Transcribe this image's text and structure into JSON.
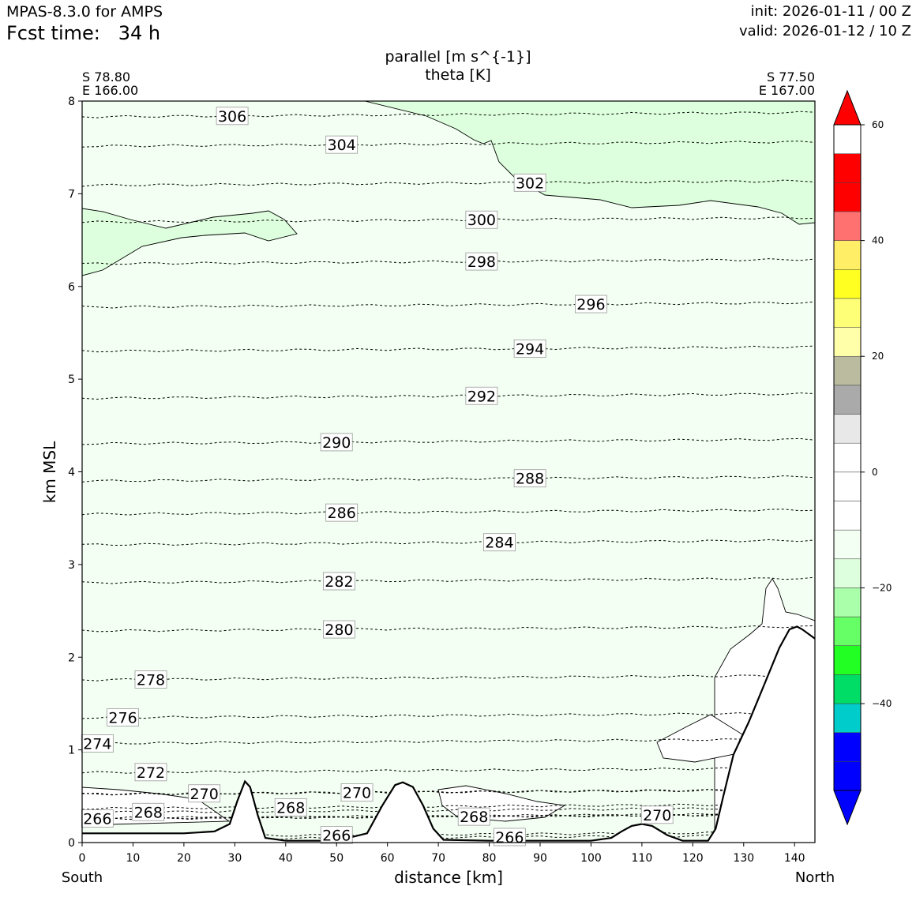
{
  "header": {
    "app_title": "MPAS-8.3.0 for AMPS",
    "fcst_label": "Fcst time:",
    "fcst_value": "34 h",
    "init": "init: 2026-01-11 / 00 Z",
    "valid": "valid: 2026-01-12 / 10 Z"
  },
  "chart_data": {
    "type": "contour",
    "title_line1": "parallel [m s^{-1}]",
    "title_line2": "theta [K]",
    "xlabel": "distance [km]",
    "ylabel": "km MSL",
    "xlim": [
      0,
      144
    ],
    "ylim": [
      0,
      8
    ],
    "xticks": [
      0,
      10,
      20,
      30,
      40,
      50,
      60,
      70,
      80,
      90,
      100,
      110,
      120,
      130,
      140
    ],
    "yticks": [
      0,
      1,
      2,
      3,
      4,
      5,
      6,
      7,
      8
    ],
    "left_end": {
      "direction": "South",
      "lat": "S 78.80",
      "lon": "E 166.00"
    },
    "right_end": {
      "direction": "North",
      "lat": "S 77.50",
      "lon": "E 167.00"
    },
    "theta_contours": [
      {
        "theta": 306,
        "label": "306",
        "x_km": 29.5,
        "z_km": 7.84
      },
      {
        "theta": 304,
        "label": "304",
        "x_km": 51,
        "z_km": 7.53
      },
      {
        "theta": 302,
        "label": "302",
        "x_km": 88,
        "z_km": 7.12
      },
      {
        "theta": 300,
        "label": "300",
        "x_km": 78.5,
        "z_km": 6.72
      },
      {
        "theta": 298,
        "label": "298",
        "x_km": 78.5,
        "z_km": 6.27
      },
      {
        "theta": 296,
        "label": "296",
        "x_km": 100,
        "z_km": 5.81
      },
      {
        "theta": 294,
        "label": "294",
        "x_km": 88,
        "z_km": 5.33
      },
      {
        "theta": 292,
        "label": "292",
        "x_km": 78.5,
        "z_km": 4.82
      },
      {
        "theta": 290,
        "label": "290",
        "x_km": 50,
        "z_km": 4.32
      },
      {
        "theta": 288,
        "label": "288",
        "x_km": 88,
        "z_km": 3.93
      },
      {
        "theta": 286,
        "label": "286",
        "x_km": 51,
        "z_km": 3.56
      },
      {
        "theta": 284,
        "label": "284",
        "x_km": 82,
        "z_km": 3.24
      },
      {
        "theta": 282,
        "label": "282",
        "x_km": 50.5,
        "z_km": 2.82
      },
      {
        "theta": 280,
        "label": "280",
        "x_km": 50.5,
        "z_km": 2.3
      },
      {
        "theta": 278,
        "label": "278",
        "x_km": 13.5,
        "z_km": 1.76
      },
      {
        "theta": 276,
        "label": "276",
        "x_km": 8,
        "z_km": 1.35
      },
      {
        "theta": 274,
        "label": "274",
        "x_km": 3,
        "z_km": 1.07
      },
      {
        "theta": 272,
        "label": "272",
        "x_km": 13.5,
        "z_km": 0.76
      },
      {
        "theta": 270,
        "label": "270",
        "x_km": 24,
        "z_km": 0.53
      },
      {
        "theta": 270,
        "label": "270",
        "x_km": 54,
        "z_km": 0.54
      },
      {
        "theta": 270,
        "label": "270",
        "x_km": 113,
        "z_km": 0.3
      },
      {
        "theta": 268,
        "label": "268",
        "x_km": 13,
        "z_km": 0.33
      },
      {
        "theta": 268,
        "label": "268",
        "x_km": 41,
        "z_km": 0.38
      },
      {
        "theta": 268,
        "label": "268",
        "x_km": 77,
        "z_km": 0.28
      },
      {
        "theta": 266,
        "label": "266",
        "x_km": 3,
        "z_km": 0.26
      },
      {
        "theta": 266,
        "label": "266",
        "x_km": 50,
        "z_km": 0.08
      },
      {
        "theta": 266,
        "label": "266",
        "x_km": 84,
        "z_km": 0.06
      }
    ],
    "terrain_km": [
      [
        0,
        0.1
      ],
      [
        20,
        0.1
      ],
      [
        26,
        0.12
      ],
      [
        29,
        0.2
      ],
      [
        30.5,
        0.45
      ],
      [
        32,
        0.66
      ],
      [
        33,
        0.6
      ],
      [
        34.5,
        0.3
      ],
      [
        36,
        0.05
      ],
      [
        40,
        0.02
      ],
      [
        50,
        0.02
      ],
      [
        56,
        0.1
      ],
      [
        59,
        0.4
      ],
      [
        61.5,
        0.62
      ],
      [
        63,
        0.65
      ],
      [
        65,
        0.6
      ],
      [
        67,
        0.4
      ],
      [
        69,
        0.15
      ],
      [
        71,
        0.03
      ],
      [
        80,
        0.02
      ],
      [
        100,
        0.02
      ],
      [
        104,
        0.05
      ],
      [
        106,
        0.12
      ],
      [
        108,
        0.18
      ],
      [
        110,
        0.2
      ],
      [
        112,
        0.18
      ],
      [
        115,
        0.08
      ],
      [
        118,
        0.02
      ],
      [
        123,
        0.02
      ],
      [
        124.5,
        0.15
      ],
      [
        126,
        0.5
      ],
      [
        128,
        0.95
      ],
      [
        131,
        1.3
      ],
      [
        134,
        1.7
      ],
      [
        137,
        2.1
      ],
      [
        139,
        2.3
      ],
      [
        140.5,
        2.33
      ],
      [
        141.5,
        2.3
      ],
      [
        144,
        2.2
      ]
    ],
    "colorbar": {
      "ticks": [
        "60",
        "40",
        "20",
        "0",
        "−20",
        "−40"
      ],
      "tick_values": [
        60,
        40,
        20,
        0,
        -20,
        -40
      ],
      "range": [
        -55,
        60
      ],
      "extend": "both",
      "segments": [
        {
          "from": -55,
          "to": -50,
          "color": "#0000ff"
        },
        {
          "from": -50,
          "to": -45,
          "color": "#0000ff"
        },
        {
          "from": -45,
          "to": -40,
          "color": "#00cccc"
        },
        {
          "from": -40,
          "to": -35,
          "color": "#00dd66"
        },
        {
          "from": -35,
          "to": -30,
          "color": "#22ff22"
        },
        {
          "from": -30,
          "to": -25,
          "color": "#66ff66"
        },
        {
          "from": -25,
          "to": -20,
          "color": "#aaffaa"
        },
        {
          "from": -20,
          "to": -15,
          "color": "#ddffdd"
        },
        {
          "from": -15,
          "to": -10,
          "color": "#f2fff2"
        },
        {
          "from": -10,
          "to": -5,
          "color": "#ffffff"
        },
        {
          "from": -5,
          "to": 0,
          "color": "#ffffff"
        },
        {
          "from": 0,
          "to": 5,
          "color": "#ffffff"
        },
        {
          "from": 5,
          "to": 10,
          "color": "#e8e8e8"
        },
        {
          "from": 10,
          "to": 15,
          "color": "#aaaaaa"
        },
        {
          "from": 15,
          "to": 20,
          "color": "#bbbba0"
        },
        {
          "from": 20,
          "to": 25,
          "color": "#ffffaa"
        },
        {
          "from": 25,
          "to": 30,
          "color": "#ffff77"
        },
        {
          "from": 30,
          "to": 35,
          "color": "#ffff22"
        },
        {
          "from": 35,
          "to": 40,
          "color": "#ffee66"
        },
        {
          "from": 40,
          "to": 45,
          "color": "#ff7070"
        },
        {
          "from": 45,
          "to": 50,
          "color": "#ff0000"
        },
        {
          "from": 50,
          "to": 55,
          "color": "#ff0000"
        }
      ],
      "under_color": "#0000ff",
      "over_color": "#ff0000"
    },
    "fill_colors": {
      "background": "#f2fff2",
      "wind_region": "#ddffdd",
      "near_zero": "#ffffff",
      "contour_line": "#000000"
    }
  }
}
